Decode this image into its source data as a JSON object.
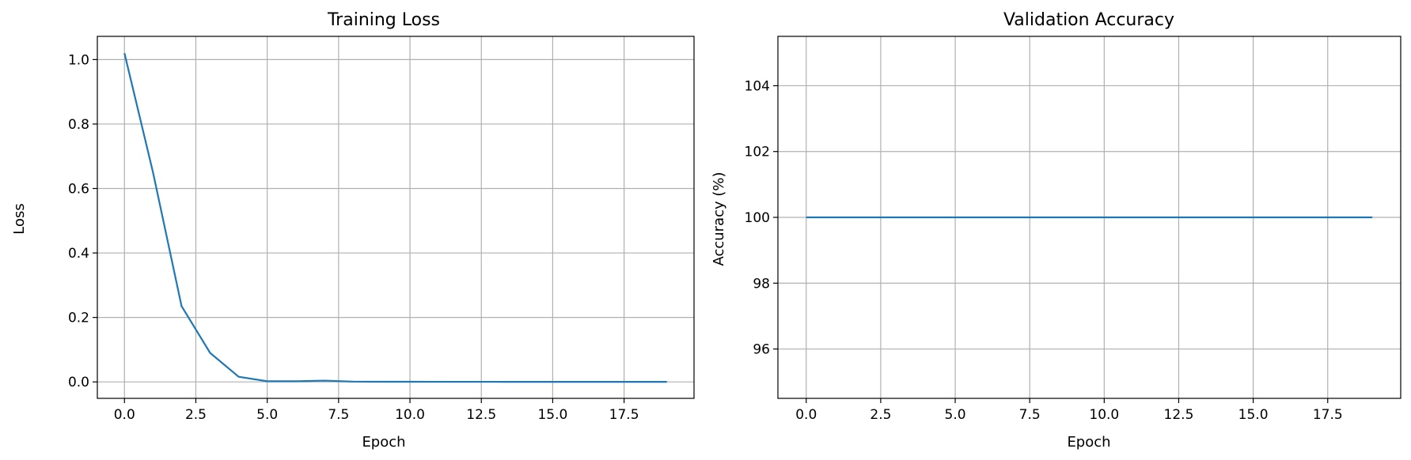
{
  "chart_data": [
    {
      "type": "line",
      "title": "Training Loss",
      "xlabel": "Epoch",
      "ylabel": "Loss",
      "xlim": [
        -0.95,
        19.95
      ],
      "ylim": [
        -0.051,
        1.072
      ],
      "xticks": [
        0.0,
        2.5,
        5.0,
        7.5,
        10.0,
        12.5,
        15.0,
        17.5
      ],
      "xtick_labels": [
        "0.0",
        "2.5",
        "5.0",
        "7.5",
        "10.0",
        "12.5",
        "15.0",
        "17.5"
      ],
      "yticks": [
        0.0,
        0.2,
        0.4,
        0.6,
        0.8,
        1.0
      ],
      "ytick_labels": [
        "0.0",
        "0.2",
        "0.4",
        "0.6",
        "0.8",
        "1.0"
      ],
      "grid": true,
      "line_color": "#1f77b4",
      "x": [
        0,
        1,
        2,
        3,
        4,
        5,
        6,
        7,
        8,
        9,
        10,
        11,
        12,
        13,
        14,
        15,
        16,
        17,
        18,
        19
      ],
      "y": [
        1.02,
        0.65,
        0.235,
        0.09,
        0.016,
        0.002,
        0.002,
        0.004,
        0.001,
        0.0005,
        0.0005,
        0.0004,
        0.0003,
        0.0003,
        0.0002,
        0.0002,
        0.0002,
        0.0001,
        0.0001,
        0.0001
      ]
    },
    {
      "type": "line",
      "title": "Validation Accuracy",
      "xlabel": "Epoch",
      "ylabel": "Accuracy (%)",
      "xlim": [
        -0.95,
        19.95
      ],
      "ylim": [
        94.5,
        105.5
      ],
      "xticks": [
        0.0,
        2.5,
        5.0,
        7.5,
        10.0,
        12.5,
        15.0,
        17.5
      ],
      "xtick_labels": [
        "0.0",
        "2.5",
        "5.0",
        "7.5",
        "10.0",
        "12.5",
        "15.0",
        "17.5"
      ],
      "yticks": [
        96,
        98,
        100,
        102,
        104
      ],
      "ytick_labels": [
        "96",
        "98",
        "100",
        "102",
        "104"
      ],
      "grid": true,
      "line_color": "#1f77b4",
      "x": [
        0,
        1,
        2,
        3,
        4,
        5,
        6,
        7,
        8,
        9,
        10,
        11,
        12,
        13,
        14,
        15,
        16,
        17,
        18,
        19
      ],
      "y": [
        100,
        100,
        100,
        100,
        100,
        100,
        100,
        100,
        100,
        100,
        100,
        100,
        100,
        100,
        100,
        100,
        100,
        100,
        100,
        100
      ]
    }
  ]
}
